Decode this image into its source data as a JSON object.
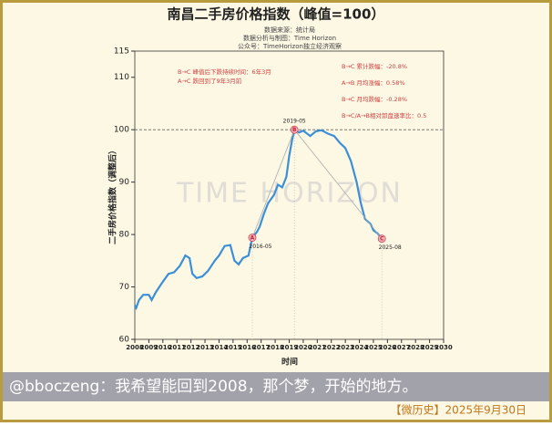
{
  "chart_data": {
    "type": "line",
    "title": "南昌二手房价格指数（峰值=100）",
    "subtitle": [
      "数据来源：统计局",
      "数据分析与制图：Time Horizon",
      "公众号：TimeHorizon独立经济观察"
    ],
    "watermark": "TIME HORIZON",
    "x_label": "时间",
    "y_label": "二手房价格指数（调整后）",
    "x": [
      2008.0,
      2008.1,
      2008.3,
      2008.6,
      2009.0,
      2009.2,
      2009.5,
      2010.0,
      2010.4,
      2010.8,
      2011.2,
      2011.6,
      2011.9,
      2012.1,
      2012.4,
      2012.8,
      2013.2,
      2013.7,
      2014.0,
      2014.4,
      2014.8,
      2015.1,
      2015.4,
      2015.7,
      2016.1,
      2016.37,
      2016.7,
      2016.9,
      2017.2,
      2017.5,
      2017.9,
      2018.2,
      2018.5,
      2018.8,
      2019.0,
      2019.2,
      2019.37,
      2019.7,
      2020.0,
      2020.5,
      2020.9,
      2021.3,
      2021.8,
      2022.2,
      2022.6,
      2023.0,
      2023.4,
      2023.8,
      2024.1,
      2024.4,
      2024.8,
      2025.0,
      2025.3,
      2025.6
    ],
    "series": [
      {
        "name": "南昌",
        "color": "#3b8fd8",
        "values": [
          66.5,
          66,
          67.5,
          68.5,
          68.5,
          67.5,
          69,
          71,
          72.5,
          72.8,
          74,
          76,
          75.5,
          72.5,
          71.7,
          72,
          73,
          75,
          76,
          77.8,
          78,
          75,
          74.3,
          75.5,
          76,
          79.4,
          80.5,
          81.5,
          84,
          86,
          87.5,
          89.5,
          89,
          91,
          95,
          98,
          100,
          99.5,
          99.8,
          98.8,
          99.7,
          99.9,
          99.2,
          98.8,
          97.5,
          96.5,
          94,
          90,
          86,
          83,
          82,
          80.8,
          80.2,
          79.2
        ]
      }
    ],
    "xlim": [
      2008,
      2030
    ],
    "xticks": [
      2008,
      2009,
      2010,
      2011,
      2012,
      2013,
      2014,
      2015,
      2016,
      2017,
      2018,
      2019,
      2020,
      2021,
      2022,
      2023,
      2024,
      2025,
      2026,
      2027,
      2028,
      2029,
      2030
    ],
    "ylim": [
      60,
      115
    ],
    "yticks": [
      60,
      70,
      80,
      90,
      100,
      110,
      115
    ],
    "reference_line": 100,
    "points": [
      {
        "marker": "A",
        "date": "2016-05",
        "x": 2016.37,
        "value": 79.4
      },
      {
        "marker": "B",
        "date": "2019-05",
        "x": 2019.37,
        "value": 100
      },
      {
        "marker": "C",
        "date": "2025-08",
        "x": 2025.6,
        "value": 79.2
      }
    ],
    "notes_left": [
      "B→C 峰值后下跌持续时间：6年3月",
      "A→C 跌回到了9年3月前"
    ],
    "notes_right": [
      "B→C 累计跌幅：-20.8%",
      "A→B 月均涨幅：0.58%",
      "B→C 月均跌幅：-0.28%",
      "B→C/A→B相对卸盘速率比：0.5"
    ]
  },
  "caption": "@bboczeng：我希望能回到2008，那个梦，开始的地方。",
  "footer": "【微历史】2025年9月30日"
}
